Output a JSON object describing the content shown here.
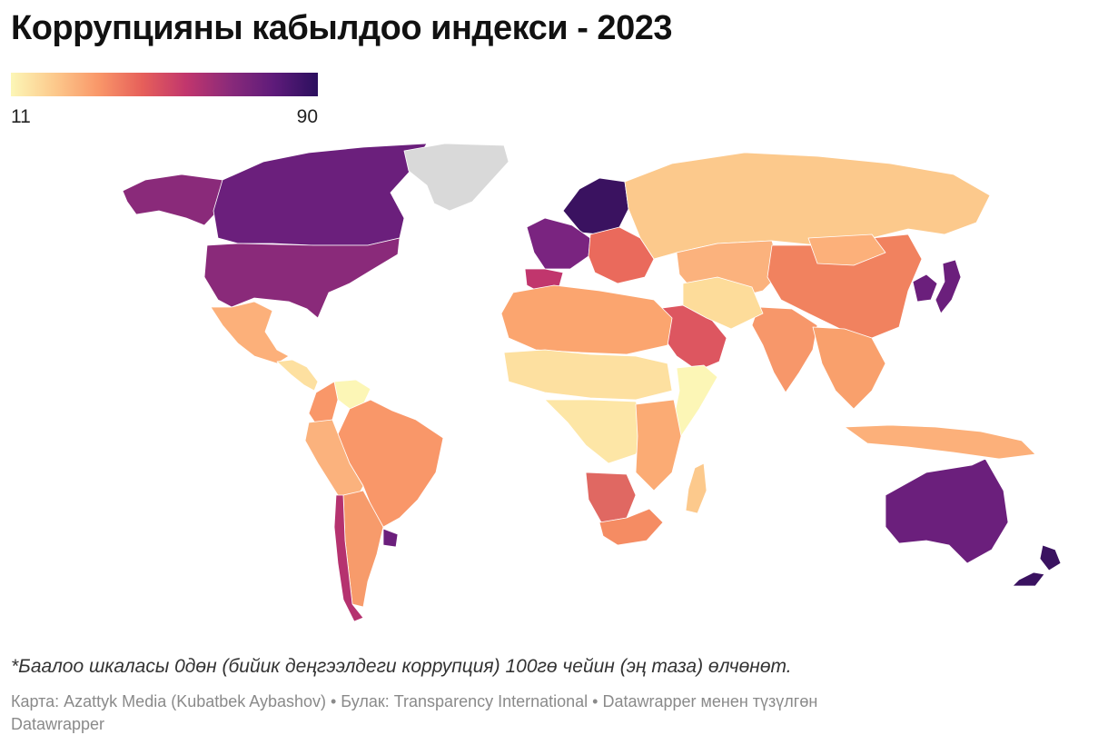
{
  "title": "Коррупцияны кабылдоо индекси - 2023",
  "legend": {
    "min": "11",
    "max": "90",
    "gradient": [
      "#fcf6b6",
      "#fcc98c",
      "#f99769",
      "#e65f5a",
      "#c1366d",
      "#8a2a7a",
      "#5e1b7a",
      "#2b0f5e"
    ]
  },
  "map": {
    "no_data_color": "#d9d9d9",
    "regions": [
      {
        "name": "Alaska",
        "score": 69,
        "color": "#8a2a7a"
      },
      {
        "name": "Canada",
        "score": 76,
        "color": "#6b1f7c"
      },
      {
        "name": "United States",
        "score": 69,
        "color": "#8a2a7a"
      },
      {
        "name": "Greenland",
        "score": null,
        "color": "#d9d9d9"
      },
      {
        "name": "Mexico",
        "score": 31,
        "color": "#fcb07a"
      },
      {
        "name": "Central America",
        "score": 24,
        "color": "#fde0a0"
      },
      {
        "name": "Venezuela",
        "score": 13,
        "color": "#fcf6b6"
      },
      {
        "name": "Colombia",
        "score": 40,
        "color": "#f99769"
      },
      {
        "name": "Brazil",
        "score": 36,
        "color": "#f99769"
      },
      {
        "name": "Peru / Bolivia",
        "score": 30,
        "color": "#fbb27d"
      },
      {
        "name": "Argentina",
        "score": 37,
        "color": "#f79b6b"
      },
      {
        "name": "Chile",
        "score": 66,
        "color": "#b5326f"
      },
      {
        "name": "Uruguay",
        "score": 73,
        "color": "#6b1f7c"
      },
      {
        "name": "Northern Europe",
        "score": 88,
        "color": "#3a1260"
      },
      {
        "name": "Western Europe",
        "score": 72,
        "color": "#7a2480"
      },
      {
        "name": "Spain / Portugal",
        "score": 61,
        "color": "#c1366d"
      },
      {
        "name": "Eastern Europe",
        "score": 45,
        "color": "#ea6a5c"
      },
      {
        "name": "Russia",
        "score": 26,
        "color": "#fcc98c"
      },
      {
        "name": "Kazakhstan / Central Asia",
        "score": 30,
        "color": "#fbb27d"
      },
      {
        "name": "China",
        "score": 42,
        "color": "#f1825f"
      },
      {
        "name": "Mongolia",
        "score": 33,
        "color": "#fcb07a"
      },
      {
        "name": "India",
        "score": 39,
        "color": "#f7976a"
      },
      {
        "name": "Saudi Arabia / Gulf",
        "score": 52,
        "color": "#dd5660"
      },
      {
        "name": "Iran / Iraq",
        "score": 23,
        "color": "#fddc9a"
      },
      {
        "name": "North Africa",
        "score": 34,
        "color": "#fba56f"
      },
      {
        "name": "Sahel",
        "score": 25,
        "color": "#fde0a0"
      },
      {
        "name": "Central Africa",
        "score": 22,
        "color": "#fde6a6"
      },
      {
        "name": "Somalia / South Sudan",
        "score": 11,
        "color": "#fcf6b6"
      },
      {
        "name": "East Africa",
        "score": 32,
        "color": "#fbab74"
      },
      {
        "name": "Namibia / Botswana",
        "score": 55,
        "color": "#e06862"
      },
      {
        "name": "South Africa",
        "score": 41,
        "color": "#f58c63"
      },
      {
        "name": "Madagascar",
        "score": 25,
        "color": "#fcc98c"
      },
      {
        "name": "Southeast Asia",
        "score": 34,
        "color": "#f9a06c"
      },
      {
        "name": "Indonesia / PNG",
        "score": 34,
        "color": "#fcb07a"
      },
      {
        "name": "Japan / Korea",
        "score": 73,
        "color": "#6b1f7c"
      },
      {
        "name": "Australia",
        "score": 75,
        "color": "#6b1f7c"
      },
      {
        "name": "New Zealand",
        "score": 85,
        "color": "#3a1260"
      }
    ]
  },
  "note": "*Баалоо шкаласы 0дөн (бийик деңгээлдеги коррупция) 100гө чейин (эң таза) өлчөнөт.",
  "credits": {
    "line1": "Карта: Azattyk Media (Kubatbek Aybashov) • Булак: Transparency International • Datawrapper менен түзүлгөн",
    "line2": "Datawrapper"
  }
}
